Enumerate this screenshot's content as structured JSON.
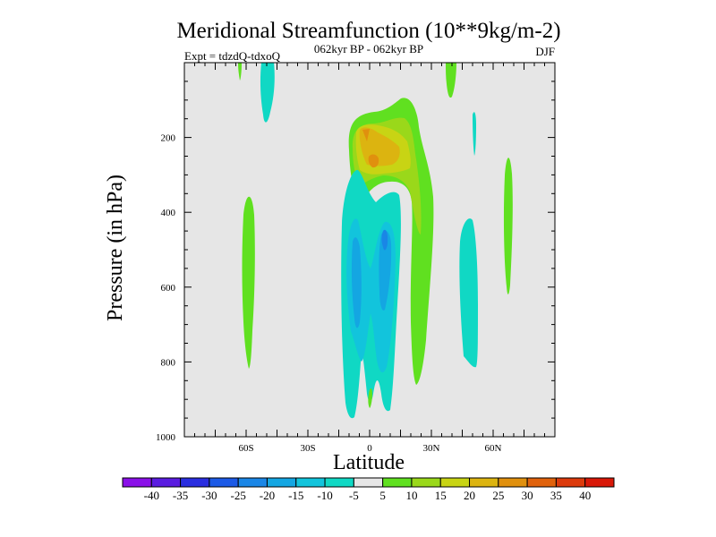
{
  "chart_data": {
    "type": "contour",
    "title": "Meridional Streamfunction (10**9kg/m-2)",
    "subtitle": "062kyr BP - 062kyr BP",
    "left_label": "Expt = tdzdQ-tdxoQ",
    "right_label": "DJF",
    "xlabel": "Latitude",
    "ylabel": "Pressure (in hPa)",
    "xlim": [
      -90,
      90
    ],
    "ylim": [
      1000,
      0
    ],
    "x_ticks": [
      {
        "value": -60,
        "label": "60S"
      },
      {
        "value": -30,
        "label": "30S"
      },
      {
        "value": 0,
        "label": "0"
      },
      {
        "value": 30,
        "label": "30N"
      },
      {
        "value": 60,
        "label": "60N"
      }
    ],
    "y_ticks": [
      {
        "value": 200,
        "label": "200"
      },
      {
        "value": 400,
        "label": "400"
      },
      {
        "value": 600,
        "label": "600"
      },
      {
        "value": 800,
        "label": "800"
      },
      {
        "value": 1000,
        "label": "1000"
      }
    ],
    "colorbar": {
      "labels": [
        "-40",
        "-35",
        "-30",
        "-25",
        "-20",
        "-15",
        "-10",
        "-5",
        "5",
        "10",
        "15",
        "20",
        "25",
        "30",
        "35",
        "40"
      ],
      "colors": [
        "#8a10e8",
        "#5a1ce0",
        "#2a2ee0",
        "#1c5ae6",
        "#1a86e6",
        "#14a6e2",
        "#12c4dc",
        "#10d8c4",
        "#e6e6e6",
        "#60e020",
        "#9ad81a",
        "#c8d414",
        "#dcb410",
        "#e0900e",
        "#e0620c",
        "#dc3a0c",
        "#d81808"
      ]
    },
    "field_background_color": "#e6e6e6",
    "features": [
      {
        "name": "upper-tropospheric positive cell",
        "lat_range": [
          -7,
          26
        ],
        "p_range": [
          60,
          340
        ],
        "max_value": 25
      },
      {
        "name": "equatorial negative cell",
        "lat_range": [
          -12,
          10
        ],
        "p_range": [
          210,
          950
        ],
        "min_value": -25
      },
      {
        "name": "negative cell 17S",
        "lat_range": [
          -17,
          -10
        ],
        "p_range": [
          360,
          800
        ],
        "min_value": -10
      },
      {
        "name": "negative cell 45N",
        "lat_range": [
          40,
          48
        ],
        "p_range": [
          410,
          790
        ],
        "min_value": -10
      },
      {
        "name": "negative cell 49S",
        "lat_range": [
          -51,
          -47
        ],
        "p_range": [
          0,
          130
        ],
        "min_value": -10
      },
      {
        "name": "positive column 30N",
        "lat_range": [
          20,
          30
        ],
        "p_range": [
          280,
          840
        ],
        "max_value": 10
      },
      {
        "name": "positive column 62S",
        "lat_range": [
          -64,
          -60
        ],
        "p_range": [
          290,
          770
        ],
        "max_value": 10
      },
      {
        "name": "positive column 69N",
        "lat_range": [
          67,
          70
        ],
        "p_range": [
          250,
          640
        ],
        "max_value": 10
      },
      {
        "name": "positive blob 40N top",
        "lat_range": [
          38,
          42
        ],
        "p_range": [
          0,
          80
        ],
        "max_value": 10
      }
    ]
  }
}
